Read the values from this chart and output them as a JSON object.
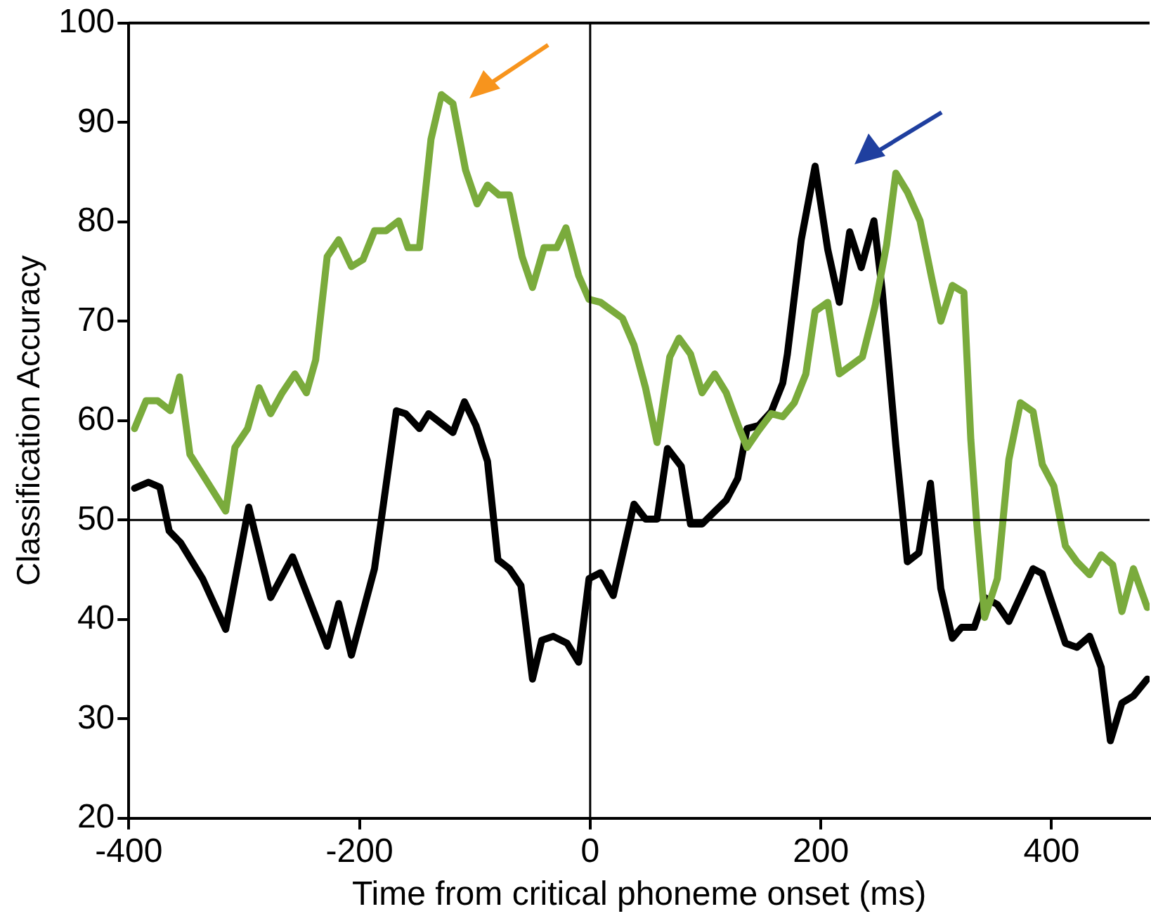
{
  "chart_data": {
    "type": "line",
    "xlabel": "Time from critical phoneme onset (ms)",
    "ylabel": "Classification Accuracy",
    "xlim": [
      -400,
      485
    ],
    "xticks": [
      -400,
      -200,
      0,
      200,
      400
    ],
    "ylim": [
      20,
      100
    ],
    "yticks": [
      20,
      30,
      40,
      50,
      60,
      70,
      80,
      90,
      100
    ],
    "grid": false,
    "legend": false,
    "marker": "none",
    "line_style": "solid",
    "ref_lines": [
      {
        "axis": "x",
        "value": 0,
        "color": "#000000"
      },
      {
        "axis": "y",
        "value": 50,
        "color": "#000000"
      }
    ],
    "series": [
      {
        "color": "#7aab3c",
        "x": [
          -395,
          -385,
          -375,
          -364,
          -356,
          -347,
          -316,
          -308,
          -297,
          -287,
          -277,
          -267,
          -256,
          -246,
          -238,
          -228,
          -218,
          -207,
          -197,
          -187,
          -177,
          -166,
          -158,
          -148,
          -138,
          -129,
          -119,
          -108,
          -98,
          -89,
          -79,
          -70,
          -59,
          -50,
          -40,
          -29,
          -21,
          -10,
          -1,
          9,
          28,
          38,
          48,
          58,
          69,
          77,
          87,
          97,
          108,
          118,
          130,
          136,
          146,
          157,
          167,
          177,
          187,
          195,
          206,
          216,
          236,
          247,
          257,
          265,
          275,
          286,
          296,
          304,
          314,
          324,
          330,
          335,
          342,
          353,
          363,
          373,
          384,
          392,
          402,
          412,
          422,
          433,
          443,
          453,
          461,
          471,
          483
        ],
        "values": [
          59.2,
          62,
          62,
          61,
          64.4,
          56.6,
          50.9,
          57.3,
          59.2,
          63.3,
          60.7,
          62.8,
          64.7,
          62.8,
          66.1,
          76.5,
          78.2,
          75.5,
          76.2,
          79.1,
          79.1,
          80.1,
          77.4,
          77.4,
          88.3,
          92.8,
          91.9,
          85.2,
          81.8,
          83.7,
          82.7,
          82.7,
          76.5,
          73.4,
          77.4,
          77.4,
          79.4,
          74.6,
          72.2,
          71.9,
          70.3,
          67.6,
          63.3,
          57.8,
          66.4,
          68.3,
          66.7,
          62.8,
          64.7,
          62.8,
          59,
          57.3,
          59,
          60.7,
          60.4,
          61.8,
          64.7,
          71,
          71.9,
          64.7,
          66.4,
          71.5,
          77.7,
          84.9,
          83,
          80.1,
          74.4,
          70,
          73.6,
          72.9,
          58.1,
          49.9,
          40.2,
          44.1,
          56.1,
          61.8,
          60.9,
          55.6,
          53.4,
          47.4,
          45.8,
          44.5,
          46.5,
          45.5,
          40.8,
          45.1,
          41.2
        ]
      },
      {
        "color": "#000000",
        "x": [
          -395,
          -383,
          -373,
          -365,
          -355,
          -336,
          -316,
          -296,
          -277,
          -258,
          -228,
          -218,
          -207,
          -187,
          -168,
          -160,
          -148,
          -140,
          -119,
          -109,
          -99,
          -89,
          -80,
          -70,
          -60,
          -50,
          -42,
          -32,
          -20,
          -10,
          -1,
          9,
          20,
          38,
          48,
          58,
          67,
          79,
          87,
          97,
          118,
          128,
          136,
          146,
          157,
          167,
          171,
          183,
          195,
          206,
          216,
          225,
          235,
          246,
          253,
          265,
          275,
          285,
          295,
          304,
          314,
          322,
          333,
          342,
          353,
          363,
          384,
          392,
          412,
          422,
          433,
          443,
          451,
          461,
          471,
          483
        ],
        "values": [
          53.2,
          53.8,
          53.3,
          48.9,
          47.7,
          44.1,
          39,
          51.3,
          42.2,
          46.3,
          37.3,
          41.6,
          36.4,
          45.1,
          61,
          60.7,
          59.2,
          60.7,
          58.8,
          61.9,
          59.5,
          55.9,
          46,
          45.1,
          43.4,
          34,
          37.9,
          38.3,
          37.6,
          35.7,
          44.1,
          44.7,
          42.4,
          51.6,
          50.1,
          50.1,
          57.2,
          55.4,
          49.6,
          49.6,
          52,
          54.2,
          59.2,
          59.5,
          60.9,
          63.8,
          66.7,
          78.2,
          85.6,
          77.2,
          71.9,
          79,
          75.4,
          80.1,
          73.3,
          57.5,
          45.8,
          46.7,
          53.7,
          43.1,
          38.1,
          39.2,
          39.2,
          42.2,
          41.5,
          39.8,
          45.1,
          44.6,
          37.6,
          37.2,
          38.3,
          35.2,
          27.8,
          31.6,
          32.3,
          34
        ]
      }
    ]
  }
}
